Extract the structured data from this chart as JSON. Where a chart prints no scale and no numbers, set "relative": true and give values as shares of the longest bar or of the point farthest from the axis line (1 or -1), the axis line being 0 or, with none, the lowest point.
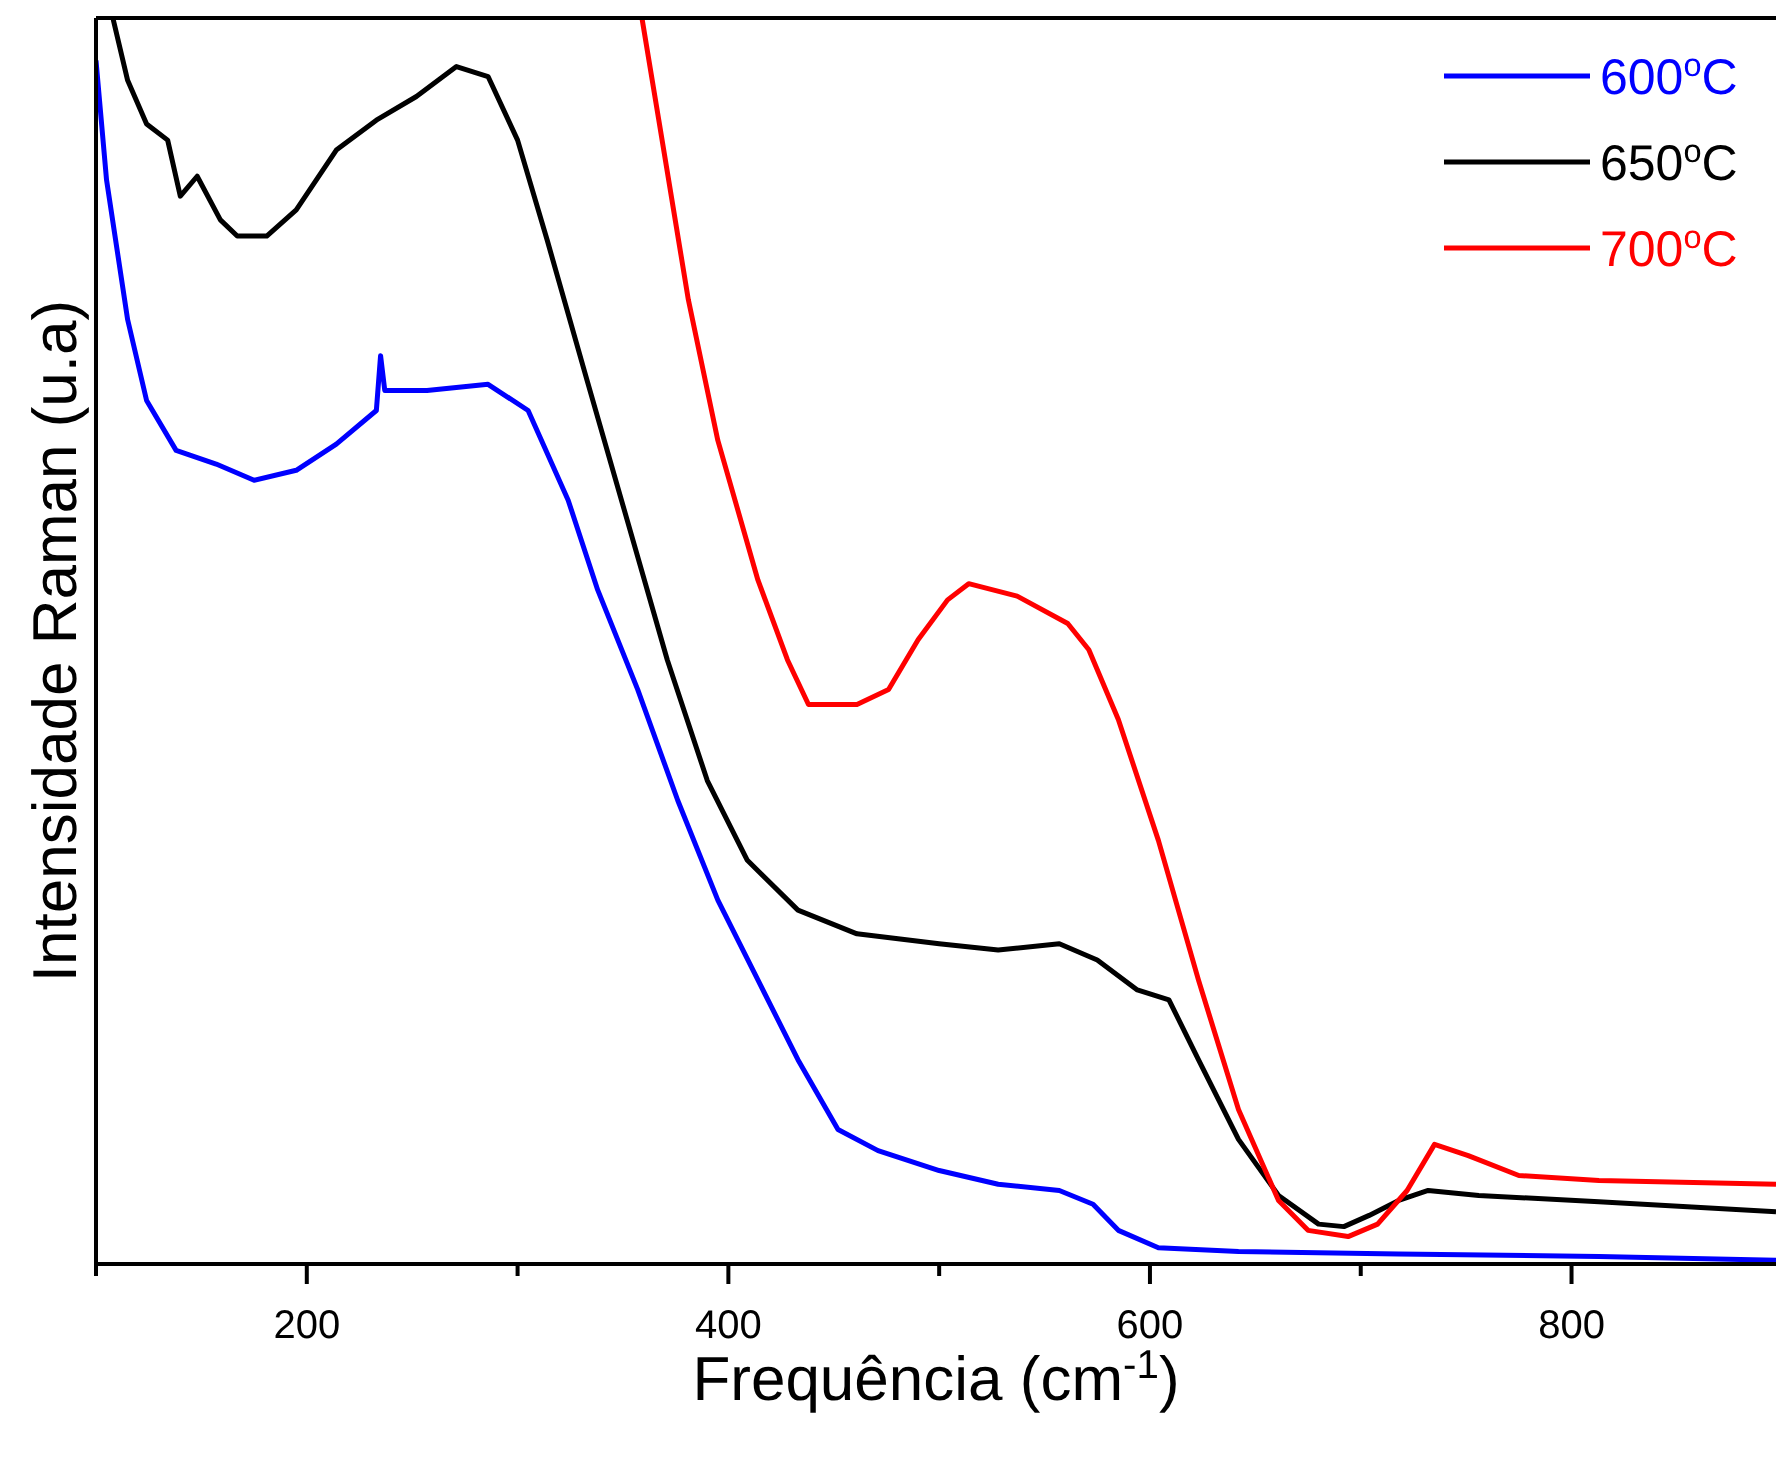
{
  "chart_data": {
    "type": "line",
    "xlabel": "Frequência (cm$^{-1}$)",
    "ylabel": "Intensidade Raman (u.a)",
    "relative": true,
    "legend": "top right",
    "grid": false,
    "xlim": [
      100,
      897
    ],
    "xticks": [
      {
        "value": 100,
        "label": null
      },
      200,
      {
        "value": 300,
        "label": null
      },
      400,
      {
        "value": 500,
        "label": null
      },
      600,
      {
        "value": 700,
        "label": null
      },
      800
    ],
    "series": [
      {
        "name": "600$^{o}$C",
        "color": "#0000ff",
        "x": [
          100,
          105,
          115,
          124,
          138,
          157,
          175,
          195,
          214,
          233,
          235,
          237,
          257,
          286,
          305,
          324,
          338,
          357,
          376,
          395,
          414,
          433,
          452,
          471,
          500,
          528,
          557,
          573,
          585,
          604,
          642,
          718,
          813,
          897
        ],
        "values": [
          0.966,
          0.87,
          0.758,
          0.693,
          0.653,
          0.642,
          0.629,
          0.637,
          0.658,
          0.685,
          0.729,
          0.701,
          0.701,
          0.706,
          0.685,
          0.613,
          0.541,
          0.461,
          0.372,
          0.292,
          0.228,
          0.164,
          0.108,
          0.091,
          0.075,
          0.064,
          0.059,
          0.048,
          0.027,
          0.013,
          0.01,
          0.008,
          0.006,
          0.003
        ]
      },
      {
        "name": "650$^{o}$C",
        "color": "#000000",
        "x": [
          108,
          115,
          124,
          134,
          140,
          148,
          159,
          167,
          181,
          195,
          214,
          233,
          252,
          271,
          286,
          300,
          314,
          333,
          352,
          371,
          390,
          409,
          433,
          461,
          500,
          528,
          557,
          575,
          594,
          609,
          623,
          642,
          661,
          680,
          692,
          704,
          718,
          732,
          756,
          813,
          897
        ],
        "values": [
          1.0,
          0.95,
          0.915,
          0.902,
          0.857,
          0.873,
          0.838,
          0.825,
          0.825,
          0.846,
          0.894,
          0.918,
          0.937,
          0.961,
          0.953,
          0.902,
          0.822,
          0.709,
          0.597,
          0.485,
          0.388,
          0.324,
          0.284,
          0.265,
          0.257,
          0.252,
          0.257,
          0.244,
          0.22,
          0.212,
          0.164,
          0.1,
          0.055,
          0.032,
          0.03,
          0.039,
          0.051,
          0.059,
          0.055,
          0.05,
          0.042
        ]
      },
      {
        "name": "700$^{o}$C",
        "color": "#ff0000",
        "x": [
          359,
          367,
          381,
          395,
          414,
          428,
          438,
          461,
          476,
          490,
          504,
          514,
          537,
          561,
          571,
          585,
          604,
          623,
          642,
          661,
          675,
          694,
          708,
          722,
          735,
          751,
          775,
          813,
          897
        ],
        "values": [
          1.0,
          0.918,
          0.774,
          0.661,
          0.549,
          0.485,
          0.449,
          0.449,
          0.461,
          0.501,
          0.533,
          0.546,
          0.536,
          0.514,
          0.493,
          0.437,
          0.34,
          0.228,
          0.124,
          0.051,
          0.027,
          0.022,
          0.032,
          0.059,
          0.096,
          0.087,
          0.071,
          0.067,
          0.064
        ]
      }
    ]
  }
}
